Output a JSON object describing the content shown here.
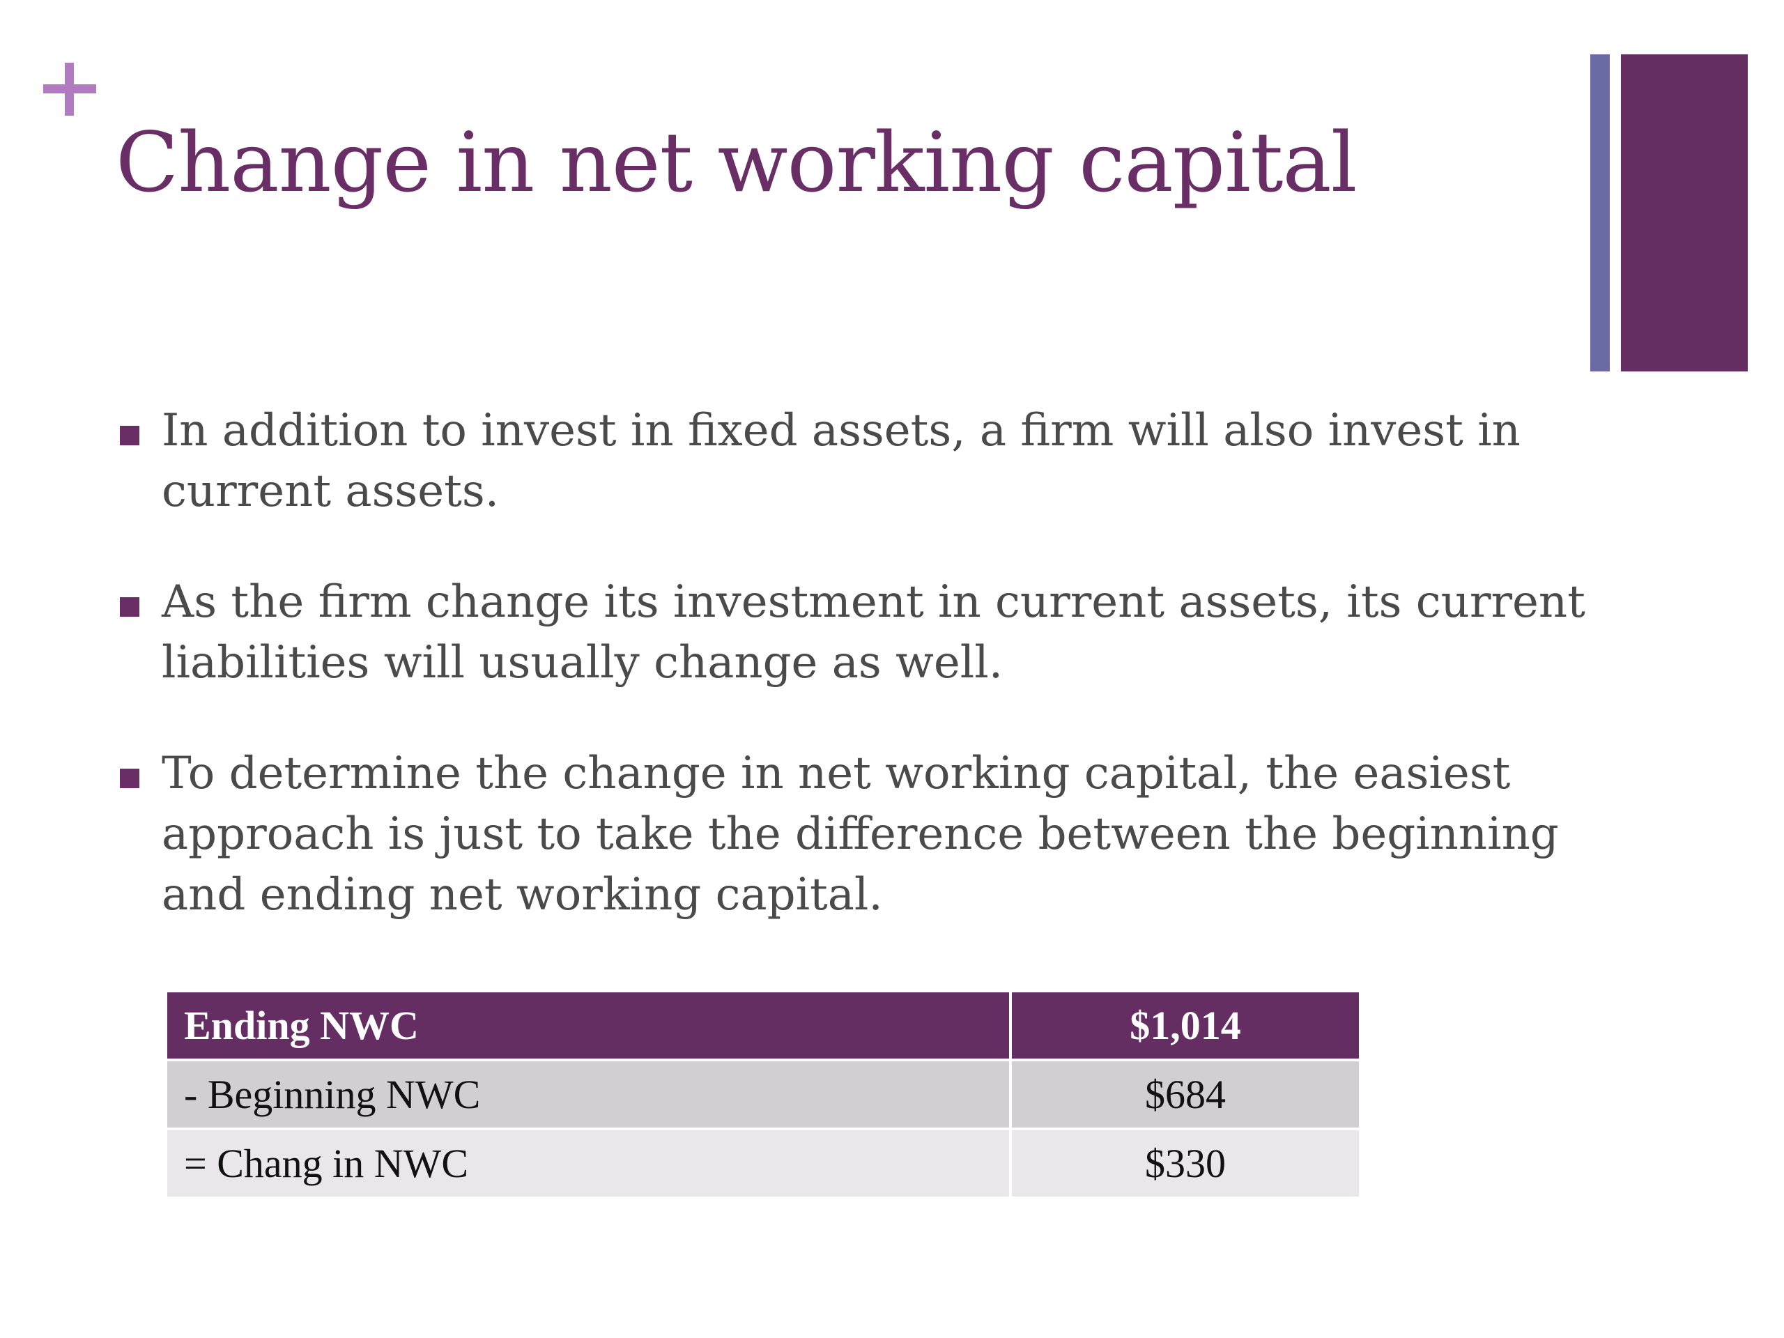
{
  "slide": {
    "title": "Change in net working capital",
    "plus_icon": "plus-icon",
    "accent_colors": {
      "title": "#6a2e66",
      "plus": "#b27ac0",
      "bar_thin": "#6a6aa4",
      "bar_thick": "#652e63"
    }
  },
  "bullets": [
    {
      "text": "In addition to invest in fixed assets, a firm will also invest in current assets."
    },
    {
      "text": "As the firm change its investment in current assets, its current liabilities will usually change as well."
    },
    {
      "text": "To determine the change in net working capital, the easiest approach is just to take the difference between the beginning and ending net working capital."
    }
  ],
  "table": {
    "rows": [
      {
        "label": "Ending NWC",
        "value": "$1,014"
      },
      {
        "label": "- Beginning NWC",
        "value": "$684"
      },
      {
        "label": "= Chang in NWC",
        "value": "$330"
      }
    ]
  }
}
